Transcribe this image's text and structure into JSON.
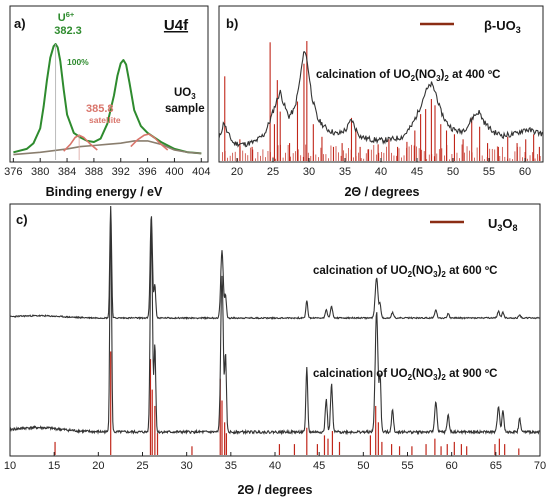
{
  "chart_data": [
    {
      "panel": "a)",
      "type": "line",
      "title": "U4f",
      "xlabel": "Binding energy / eV",
      "ylabel": "",
      "xlim": [
        375.5,
        405
      ],
      "xticks": [
        376,
        380,
        384,
        388,
        392,
        396,
        400,
        404
      ],
      "annotations": {
        "peak_label_prefix": "U",
        "peak_label_sup": "6+",
        "peak_value": "382.3",
        "percent": "100%",
        "satellite_value": "385.8",
        "satellite_word": "satellite",
        "sample_line1_pre": "UO",
        "sample_line1_sub": "3",
        "sample_line2": "sample"
      },
      "series": [
        {
          "role": "envelope",
          "color": "#2e8b2e",
          "x": [
            376,
            378,
            379,
            380,
            380.5,
            381,
            381.5,
            382,
            382.3,
            382.6,
            383,
            383.5,
            384,
            385,
            386,
            387,
            388,
            389,
            390,
            391,
            391.5,
            392,
            392.4,
            392.8,
            393.3,
            394,
            395,
            396,
            397,
            398,
            400,
            402,
            404
          ],
          "y": [
            0.05,
            0.08,
            0.13,
            0.26,
            0.45,
            0.68,
            0.88,
            0.98,
            1.0,
            0.97,
            0.85,
            0.6,
            0.38,
            0.22,
            0.18,
            0.15,
            0.14,
            0.17,
            0.3,
            0.55,
            0.72,
            0.83,
            0.86,
            0.82,
            0.66,
            0.42,
            0.28,
            0.22,
            0.18,
            0.14,
            0.08,
            0.05,
            0.04
          ]
        },
        {
          "role": "background",
          "color": "#8a7e6e",
          "x": [
            376,
            380,
            384,
            386,
            388,
            390,
            392,
            394,
            396,
            398,
            400,
            402,
            404
          ],
          "y": [
            0.03,
            0.05,
            0.08,
            0.1,
            0.11,
            0.12,
            0.13,
            0.15,
            0.15,
            0.12,
            0.07,
            0.05,
            0.04
          ]
        },
        {
          "role": "satellite-1",
          "color": "#d9756b",
          "x": [
            383.5,
            384.5,
            385.2,
            385.8,
            386.5,
            387.5,
            388.5
          ],
          "y": [
            0.06,
            0.12,
            0.18,
            0.2,
            0.18,
            0.12,
            0.07
          ]
        },
        {
          "role": "satellite-2",
          "color": "#d9756b",
          "x": [
            393.5,
            394.5,
            395.5,
            396.2,
            397,
            398,
            399
          ],
          "y": [
            0.1,
            0.16,
            0.2,
            0.21,
            0.18,
            0.12,
            0.07
          ]
        }
      ]
    },
    {
      "panel": "b)",
      "type": "line",
      "xlabel": "2Θ / degrees",
      "xlim": [
        17.5,
        62.5
      ],
      "xticks": [
        20,
        25,
        30,
        35,
        40,
        45,
        50,
        55,
        60
      ],
      "legend": {
        "pre": "β-UO",
        "sub": "3",
        "position": "top-right"
      },
      "label": {
        "pre": "calcination of UO",
        "sub1": "2",
        "mid": "(NO",
        "sub2": "3",
        "post": ")",
        "sub3": "2",
        "tail": " at 400 ºC"
      },
      "reference_color": "#c0261a",
      "reference_x": [
        18.3,
        20.4,
        22.1,
        24.6,
        25.2,
        25.6,
        26.0,
        27.3,
        28.4,
        29.3,
        29.7,
        30.6,
        31.8,
        33.4,
        34.6,
        35.9,
        36.5,
        37.1,
        38.2,
        39.6,
        41.1,
        42.3,
        43.6,
        44.7,
        45.5,
        46.2,
        47.0,
        47.5,
        48.3,
        49.1,
        50.2,
        51.4,
        52.6,
        53.7,
        54.8,
        56.3,
        57.6,
        58.9,
        60.1,
        61.2,
        62.0
      ],
      "reference_y": [
        0.68,
        0.18,
        0.12,
        0.95,
        0.3,
        0.65,
        0.4,
        0.15,
        0.48,
        0.78,
        0.96,
        0.3,
        0.2,
        0.12,
        0.15,
        0.35,
        0.25,
        0.12,
        0.1,
        0.14,
        0.18,
        0.12,
        0.16,
        0.25,
        0.38,
        0.42,
        0.5,
        0.45,
        0.3,
        0.25,
        0.22,
        0.18,
        0.35,
        0.28,
        0.15,
        0.12,
        0.2,
        0.15,
        0.18,
        0.22,
        0.12
      ],
      "pattern_x": [
        17.5,
        18.2,
        18.6,
        19.5,
        21,
        22.5,
        23.8,
        24.6,
        25.0,
        25.6,
        26.0,
        26.5,
        27.2,
        28.0,
        28.6,
        29.1,
        29.4,
        29.8,
        30.4,
        31.2,
        32.5,
        34,
        35.2,
        35.9,
        36.5,
        37.2,
        38.5,
        40,
        41.5,
        43,
        44.2,
        45.2,
        46.2,
        47.0,
        47.6,
        48.2,
        49.0,
        50,
        51,
        52,
        52.8,
        53.6,
        54.3,
        55.5,
        57,
        58.5,
        60,
        61.5,
        62.5
      ],
      "pattern_y": [
        0.18,
        0.32,
        0.24,
        0.15,
        0.14,
        0.16,
        0.22,
        0.33,
        0.4,
        0.5,
        0.56,
        0.46,
        0.36,
        0.42,
        0.6,
        0.8,
        0.9,
        0.78,
        0.52,
        0.34,
        0.26,
        0.22,
        0.26,
        0.34,
        0.26,
        0.2,
        0.18,
        0.17,
        0.18,
        0.2,
        0.28,
        0.4,
        0.56,
        0.62,
        0.55,
        0.42,
        0.32,
        0.26,
        0.24,
        0.28,
        0.36,
        0.4,
        0.32,
        0.24,
        0.21,
        0.22,
        0.26,
        0.24,
        0.22
      ]
    },
    {
      "panel": "c)",
      "type": "line",
      "xlabel": "2Θ / degrees",
      "xlim": [
        10,
        70
      ],
      "xticks": [
        10,
        15,
        20,
        25,
        30,
        35,
        40,
        45,
        50,
        55,
        60,
        65,
        70
      ],
      "legend": {
        "pre": "U",
        "sub1": "3",
        "mid": "O",
        "sub2": "8",
        "position": "top-right"
      },
      "labels": [
        {
          "pre": "calcination of UO",
          "sub1": "2",
          "mid": "(NO",
          "sub2": "3",
          "post": ")",
          "sub3": "2",
          "tail": " at 600 ºC"
        },
        {
          "pre": "calcination of UO",
          "sub1": "2",
          "mid": "(NO",
          "sub2": "3",
          "post": ")",
          "sub3": "2",
          "tail": " at 900 ºC"
        }
      ],
      "peaks": [
        {
          "x": 21.4,
          "h600": 1.0,
          "h900": 1.0,
          "w": 0.14
        },
        {
          "x": 26.0,
          "h600": 0.92,
          "h900": 0.95,
          "w": 0.18
        },
        {
          "x": 26.4,
          "h600": 0.3,
          "h900": 0.4,
          "w": 0.14
        },
        {
          "x": 34.0,
          "h600": 0.6,
          "h900": 0.72,
          "w": 0.2
        },
        {
          "x": 34.4,
          "h600": 0.2,
          "h900": 0.35,
          "w": 0.14
        },
        {
          "x": 43.6,
          "h600": 0.16,
          "h900": 0.3,
          "w": 0.14
        },
        {
          "x": 45.8,
          "h600": 0.08,
          "h900": 0.15,
          "w": 0.16
        },
        {
          "x": 46.4,
          "h600": 0.11,
          "h900": 0.22,
          "w": 0.16
        },
        {
          "x": 51.5,
          "h600": 0.36,
          "h900": 0.55,
          "w": 0.22
        },
        {
          "x": 51.9,
          "h600": 0.12,
          "h900": 0.25,
          "w": 0.14
        },
        {
          "x": 53.3,
          "h600": 0.05,
          "h900": 0.1,
          "w": 0.16
        },
        {
          "x": 58.2,
          "h600": 0.07,
          "h900": 0.14,
          "w": 0.18
        },
        {
          "x": 59.6,
          "h600": 0.04,
          "h900": 0.08,
          "w": 0.16
        },
        {
          "x": 65.3,
          "h600": 0.06,
          "h900": 0.12,
          "w": 0.18
        },
        {
          "x": 65.8,
          "h600": 0.05,
          "h900": 0.1,
          "w": 0.16
        },
        {
          "x": 67.7,
          "h600": 0.03,
          "h900": 0.06,
          "w": 0.16
        }
      ],
      "reference_color": "#c0261a",
      "reference_x": [
        15.1,
        21.4,
        25.9,
        26.1,
        26.4,
        26.7,
        30.6,
        33.8,
        34.0,
        34.3,
        34.5,
        40.5,
        42.2,
        43.6,
        44.8,
        45.6,
        46.0,
        46.5,
        47.3,
        50.8,
        51.4,
        51.7,
        52.1,
        53.2,
        54.1,
        55.5,
        57.1,
        58.1,
        58.8,
        59.5,
        60.3,
        61.1,
        61.7,
        64.9,
        65.4,
        66.0,
        67.6
      ],
      "reference_y": [
        0.12,
        0.95,
        0.88,
        0.6,
        0.45,
        0.2,
        0.08,
        0.7,
        0.5,
        0.3,
        0.2,
        0.1,
        0.1,
        0.25,
        0.1,
        0.18,
        0.15,
        0.22,
        0.12,
        0.18,
        0.45,
        0.3,
        0.12,
        0.1,
        0.08,
        0.08,
        0.1,
        0.15,
        0.08,
        0.1,
        0.12,
        0.1,
        0.08,
        0.1,
        0.15,
        0.1,
        0.06
      ]
    }
  ]
}
